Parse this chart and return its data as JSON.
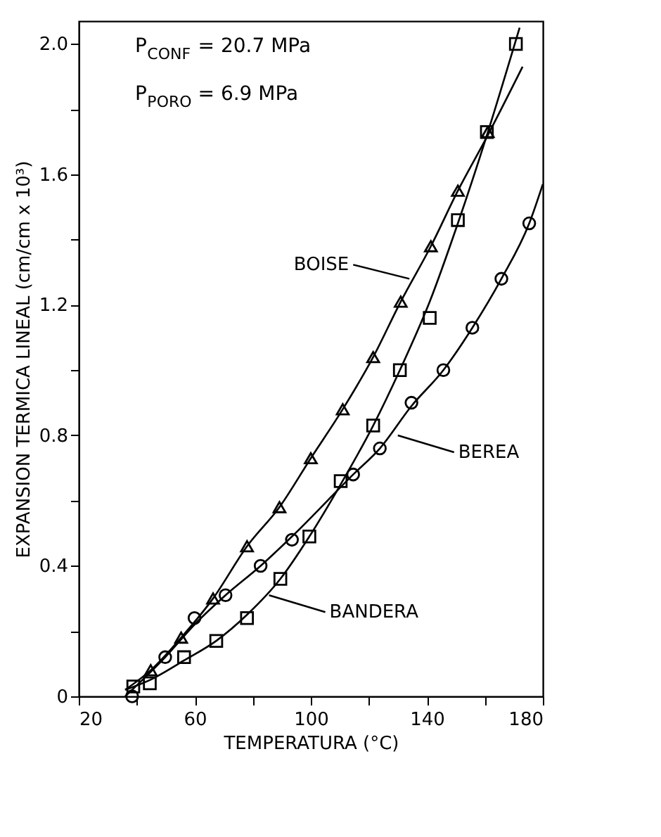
{
  "chart_data": {
    "type": "scatter",
    "xlabel": "TEMPERATURA (°C)",
    "ylabel": "EXPANSION TERMICA LINEAL (cm/cm x 10³)",
    "xlim": [
      20,
      180
    ],
    "xticks": [
      20,
      {
        "value": 40,
        "label": null
      },
      60,
      {
        "value": 80,
        "label": null
      },
      100,
      {
        "value": 120,
        "label": null
      },
      140,
      {
        "value": 160,
        "label": null
      },
      180
    ],
    "ylim": [
      0,
      2.07
    ],
    "yticks": [
      {
        "value": 0,
        "label": "0"
      },
      {
        "value": 0.2,
        "label": null
      },
      0.4,
      {
        "value": 0.6,
        "label": null
      },
      0.8,
      {
        "value": 1.0,
        "label": null
      },
      1.2,
      {
        "value": 1.4,
        "label": null
      },
      1.6,
      {
        "value": 1.8,
        "label": null
      },
      {
        "value": 2.0,
        "label": "2.0"
      }
    ],
    "grid": false,
    "series": [
      {
        "marker": "triangle",
        "color": "#000000",
        "x": [
          44.8,
          55.3,
          66.3,
          78,
          89.2,
          100,
          111,
          121.5,
          131,
          141.4,
          150.7,
          161
        ],
        "values": [
          0.08,
          0.18,
          0.3,
          0.46,
          0.58,
          0.73,
          0.88,
          1.04,
          1.21,
          1.38,
          1.55,
          1.73
        ]
      },
      {
        "marker": "square",
        "color": "#000000",
        "x": [
          38.8,
          44.5,
          56.3,
          67.4,
          78,
          89.5,
          99.5,
          110.3,
          121.5,
          130.7,
          141,
          150.7,
          160.7,
          170.7
        ],
        "values": [
          0.03,
          0.04,
          0.12,
          0.17,
          0.24,
          0.36,
          0.49,
          0.66,
          0.83,
          1.0,
          1.16,
          1.46,
          1.73,
          2.0
        ]
      },
      {
        "marker": "circle",
        "color": "#000000",
        "x": [
          38.4,
          49.8,
          59.9,
          70.6,
          82.7,
          93.5,
          114.6,
          123.8,
          134.7,
          145.7,
          155.7,
          165.7,
          175.3
        ],
        "values": [
          0.0,
          0.12,
          0.24,
          0.31,
          0.4,
          0.48,
          0.68,
          0.76,
          0.9,
          1.0,
          1.13,
          1.28,
          1.45
        ]
      },
      {
        "type": "line",
        "line_style": "solid",
        "color": "#000000",
        "x": [
          36,
          44.8,
          55.3,
          66.3,
          78,
          89.2,
          100,
          111,
          121.5,
          131,
          141.4,
          150.7,
          161,
          173
        ],
        "values": [
          0.02,
          0.08,
          0.18,
          0.3,
          0.46,
          0.58,
          0.73,
          0.88,
          1.04,
          1.21,
          1.38,
          1.55,
          1.72,
          1.93
        ]
      },
      {
        "type": "line",
        "line_style": "solid",
        "color": "#000000",
        "x": [
          36,
          44.5,
          56.3,
          67.4,
          78,
          89.5,
          99.5,
          110.3,
          121.5,
          130.7,
          141,
          150.7,
          160.7,
          172
        ],
        "values": [
          0.02,
          0.05,
          0.11,
          0.17,
          0.25,
          0.36,
          0.49,
          0.65,
          0.83,
          1.0,
          1.21,
          1.45,
          1.72,
          2.05
        ]
      },
      {
        "type": "line",
        "line_style": "solid",
        "color": "#000000",
        "x": [
          36,
          49.8,
          59.9,
          70.6,
          82.7,
          93.5,
          114.6,
          123.8,
          134.7,
          145.7,
          155.7,
          165.7,
          175.3,
          180
        ],
        "values": [
          0.0,
          0.12,
          0.22,
          0.31,
          0.4,
          0.49,
          0.68,
          0.76,
          0.89,
          1.0,
          1.13,
          1.28,
          1.45,
          1.57
        ]
      }
    ],
    "annotations": [
      "P$_{CONF}$ = 20.7 MPa",
      "P$_{PORO}$ = 6.9 MPa",
      {
        "text": "BOISE",
        "x": 134,
        "y": 1.28
      },
      {
        "text": "BEREA",
        "x": 130,
        "y": 0.8
      },
      {
        "text": "BANDERA",
        "x": 85.6,
        "y": 0.31
      }
    ]
  }
}
